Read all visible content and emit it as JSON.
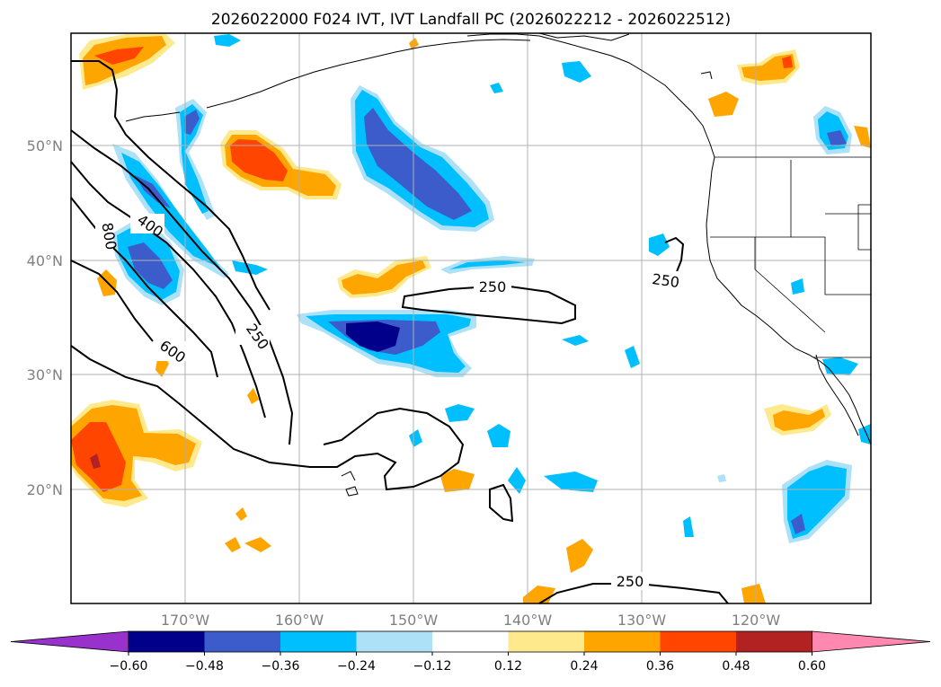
{
  "title": "2026022000 F024 IVT, IVT Landfall PC (2026022212 - 2026022512)",
  "lat_labels": [
    "50°N",
    "40°N",
    "30°N",
    "20°N"
  ],
  "lon_labels": [
    "170°W",
    "160°W",
    "150°W",
    "140°W",
    "130°W",
    "120°W"
  ],
  "colorbar": {
    "colors": [
      "#9932cc",
      "#00008b",
      "#3c5ccb",
      "#00bfff",
      "#ade1f8",
      "#ffffff",
      "#ffe98d",
      "#ffa500",
      "#ff4500",
      "#b22222",
      "#ff88b0"
    ],
    "tick_labels": [
      "−0.60",
      "−0.48",
      "−0.36",
      "−0.24",
      "−0.12",
      "0.12",
      "0.24",
      "0.36",
      "0.48",
      "0.60"
    ]
  },
  "contour_labels": [
    "800",
    "400",
    "600",
    "250",
    "250",
    "250",
    "250"
  ]
}
